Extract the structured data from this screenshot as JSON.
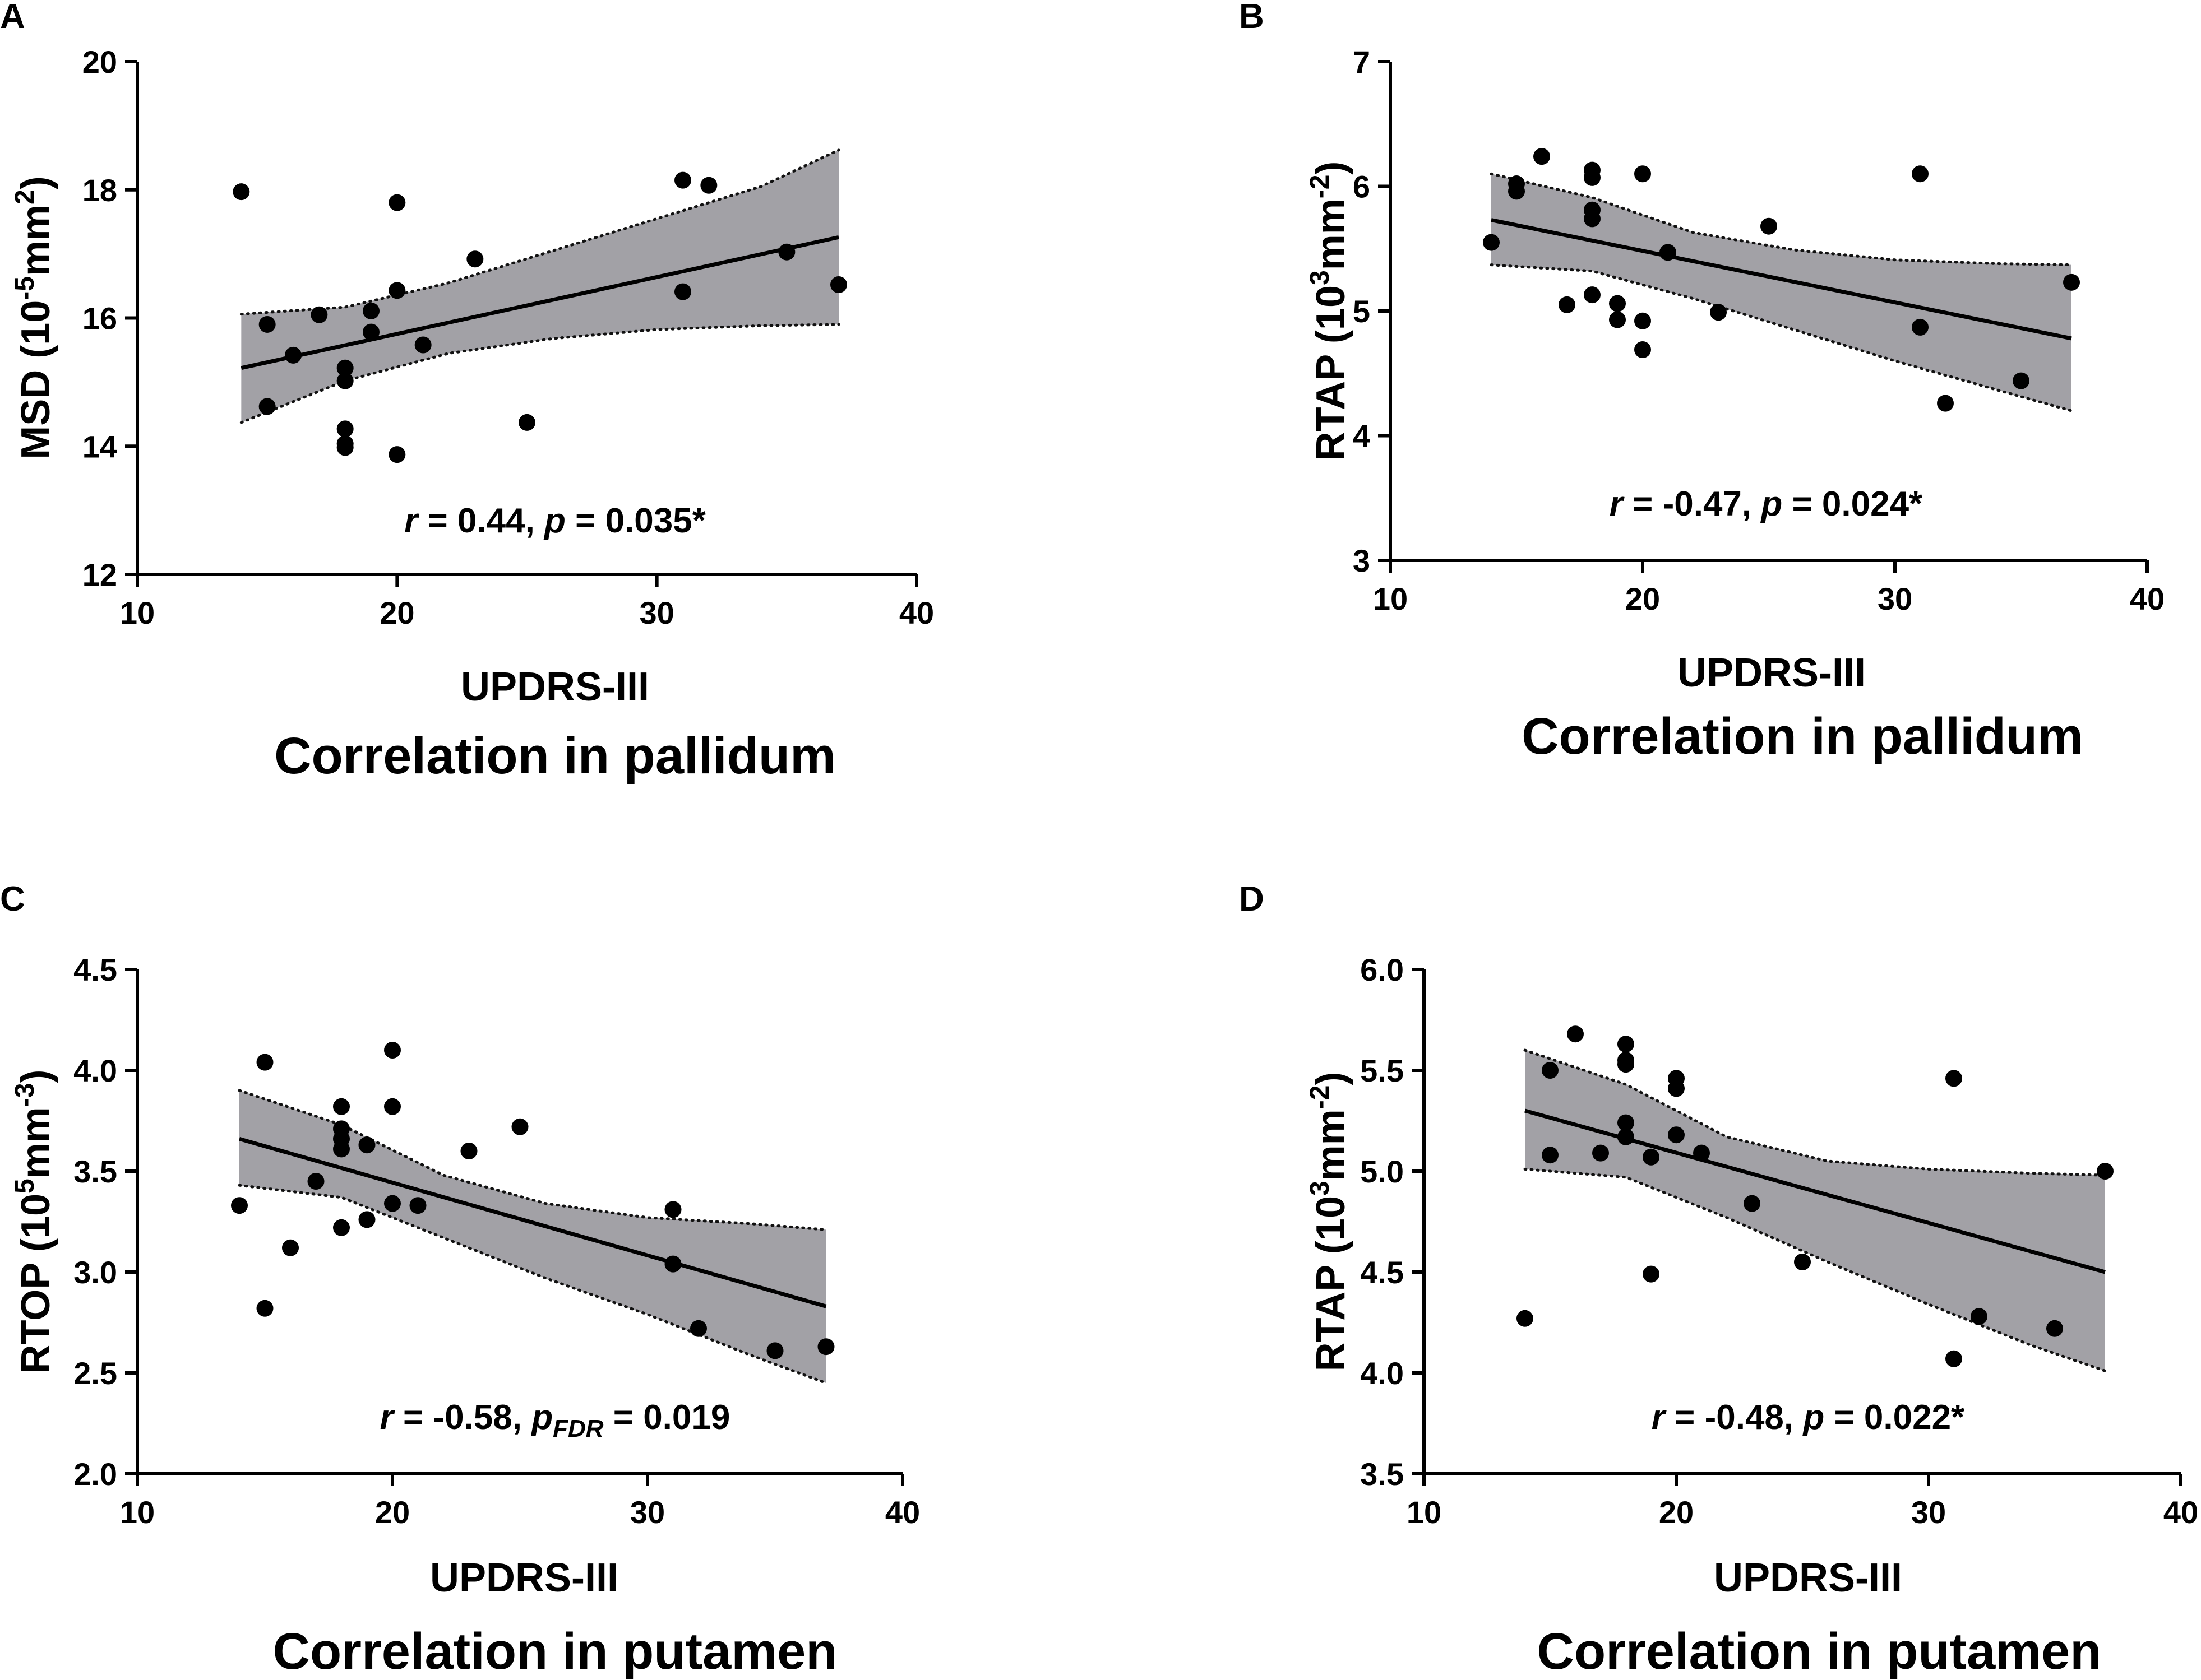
{
  "chart_data": [
    {
      "panel": "A",
      "type": "scatter",
      "title": "Correlation in pallidum",
      "xlabel": "UPDRS-III",
      "ylabel_parts": [
        "MSD (10",
        "-5",
        "mm",
        "2",
        ")"
      ],
      "xlim": [
        10,
        40
      ],
      "ylim": [
        12,
        20
      ],
      "xticks": [
        10,
        20,
        30,
        40
      ],
      "yticks": [
        12,
        14,
        16,
        18,
        20
      ],
      "ytick_labels": [
        "12",
        "14",
        "16",
        "18",
        "20"
      ],
      "points": [
        [
          14,
          17.97
        ],
        [
          15,
          15.9
        ],
        [
          15,
          14.62
        ],
        [
          16,
          15.42
        ],
        [
          17,
          16.05
        ],
        [
          18,
          15.22
        ],
        [
          18,
          15.02
        ],
        [
          18,
          14.27
        ],
        [
          18,
          14.04
        ],
        [
          18,
          13.98
        ],
        [
          19,
          16.11
        ],
        [
          19,
          15.78
        ],
        [
          20,
          17.8
        ],
        [
          20,
          16.43
        ],
        [
          20,
          13.87
        ],
        [
          21,
          15.58
        ],
        [
          23,
          16.92
        ],
        [
          25,
          14.37
        ],
        [
          31,
          18.15
        ],
        [
          31,
          16.41
        ],
        [
          32,
          18.07
        ],
        [
          35,
          17.03
        ],
        [
          37,
          16.52
        ]
      ],
      "fit": {
        "x": [
          14,
          37
        ],
        "y": [
          15.22,
          17.26
        ]
      },
      "ci_upper": [
        [
          14,
          16.06
        ],
        [
          18,
          16.17
        ],
        [
          22,
          16.55
        ],
        [
          26,
          17.05
        ],
        [
          30,
          17.55
        ],
        [
          34,
          18.05
        ],
        [
          37,
          18.62
        ]
      ],
      "ci_lower": [
        [
          14,
          14.37
        ],
        [
          18,
          15.02
        ],
        [
          22,
          15.45
        ],
        [
          26,
          15.68
        ],
        [
          30,
          15.82
        ],
        [
          34,
          15.88
        ],
        [
          37,
          15.9
        ]
      ],
      "annotation": {
        "r_sym": "r",
        "r_text": " = 0.44, ",
        "p_sym": "p",
        "p_sub": "",
        "p_text": " = 0.035*"
      }
    },
    {
      "panel": "B",
      "type": "scatter",
      "title": "Correlation in pallidum",
      "xlabel": "UPDRS-III",
      "ylabel_parts": [
        "RTAP (10",
        "3",
        "mm",
        "-2",
        ")"
      ],
      "xlim": [
        10,
        40
      ],
      "ylim": [
        3,
        7
      ],
      "xticks": [
        10,
        20,
        30,
        40
      ],
      "yticks": [
        3,
        4,
        5,
        6,
        7
      ],
      "ytick_labels": [
        "3",
        "4",
        "5",
        "6",
        "7"
      ],
      "points": [
        [
          14,
          5.55
        ],
        [
          15,
          6.02
        ],
        [
          15,
          5.96
        ],
        [
          16,
          6.24
        ],
        [
          17,
          5.05
        ],
        [
          18,
          6.13
        ],
        [
          18,
          6.07
        ],
        [
          18,
          5.81
        ],
        [
          18,
          5.74
        ],
        [
          18,
          5.13
        ],
        [
          19,
          5.06
        ],
        [
          19,
          4.93
        ],
        [
          20,
          6.1
        ],
        [
          20,
          4.92
        ],
        [
          20,
          4.69
        ],
        [
          21,
          5.47
        ],
        [
          23,
          4.99
        ],
        [
          25,
          5.68
        ],
        [
          31,
          6.1
        ],
        [
          31,
          4.87
        ],
        [
          32,
          4.26
        ],
        [
          35,
          4.44
        ],
        [
          37,
          5.23
        ]
      ],
      "fit": {
        "x": [
          14,
          37
        ],
        "y": [
          5.73,
          4.78
        ]
      },
      "ci_upper": [
        [
          14,
          6.1
        ],
        [
          18,
          5.91
        ],
        [
          22,
          5.63
        ],
        [
          26,
          5.49
        ],
        [
          30,
          5.41
        ],
        [
          34,
          5.38
        ],
        [
          37,
          5.37
        ]
      ],
      "ci_lower": [
        [
          14,
          5.37
        ],
        [
          18,
          5.32
        ],
        [
          22,
          5.1
        ],
        [
          26,
          4.85
        ],
        [
          30,
          4.6
        ],
        [
          34,
          4.37
        ],
        [
          37,
          4.2
        ]
      ],
      "annotation": {
        "r_sym": "r",
        "r_text": " = -0.47, ",
        "p_sym": "p",
        "p_sub": "",
        "p_text": " = 0.024*"
      }
    },
    {
      "panel": "C",
      "type": "scatter",
      "title": "Correlation in putamen",
      "xlabel": "UPDRS-III",
      "ylabel_parts": [
        "RTOP (10",
        "5",
        "mm",
        "-3",
        ")"
      ],
      "xlim": [
        10,
        40
      ],
      "ylim": [
        2.0,
        4.5
      ],
      "xticks": [
        10,
        20,
        30,
        40
      ],
      "yticks": [
        2.0,
        2.5,
        3.0,
        3.5,
        4.0,
        4.5
      ],
      "ytick_labels": [
        "2.0",
        "2.5",
        "3.0",
        "3.5",
        "4.0",
        "4.5"
      ],
      "points": [
        [
          14,
          3.33
        ],
        [
          15,
          4.04
        ],
        [
          15,
          2.82
        ],
        [
          16,
          3.12
        ],
        [
          17,
          3.45
        ],
        [
          18,
          3.82
        ],
        [
          18,
          3.71
        ],
        [
          18,
          3.66
        ],
        [
          18,
          3.61
        ],
        [
          18,
          3.22
        ],
        [
          19,
          3.63
        ],
        [
          19,
          3.26
        ],
        [
          20,
          4.1
        ],
        [
          20,
          3.82
        ],
        [
          20,
          3.34
        ],
        [
          21,
          3.33
        ],
        [
          23,
          3.6
        ],
        [
          25,
          3.72
        ],
        [
          31,
          3.31
        ],
        [
          31,
          3.04
        ],
        [
          32,
          2.72
        ],
        [
          35,
          2.61
        ],
        [
          37,
          2.63
        ]
      ],
      "fit": {
        "x": [
          14,
          37
        ],
        "y": [
          3.66,
          2.83
        ]
      },
      "ci_upper": [
        [
          14,
          3.9
        ],
        [
          18,
          3.73
        ],
        [
          22,
          3.48
        ],
        [
          26,
          3.34
        ],
        [
          30,
          3.27
        ],
        [
          34,
          3.24
        ],
        [
          37,
          3.21
        ]
      ],
      "ci_lower": [
        [
          14,
          3.43
        ],
        [
          18,
          3.37
        ],
        [
          22,
          3.17
        ],
        [
          26,
          2.97
        ],
        [
          30,
          2.79
        ],
        [
          34,
          2.59
        ],
        [
          37,
          2.45
        ]
      ],
      "annotation": {
        "r_sym": "r",
        "r_text": " = -0.58, ",
        "p_sym": "p",
        "p_sub": "FDR",
        "p_text": " = 0.019"
      }
    },
    {
      "panel": "D",
      "type": "scatter",
      "title": "Correlation in putamen",
      "xlabel": "UPDRS-III",
      "ylabel_parts": [
        "RTAP (10",
        "3",
        "mm",
        "-2",
        ")"
      ],
      "xlim": [
        10,
        40
      ],
      "ylim": [
        3.5,
        6.0
      ],
      "xticks": [
        10,
        20,
        30,
        40
      ],
      "yticks": [
        3.5,
        4.0,
        4.5,
        5.0,
        5.5,
        6.0
      ],
      "ytick_labels": [
        "3.5",
        "4.0",
        "4.5",
        "5.0",
        "5.5",
        "6.0"
      ],
      "points": [
        [
          14,
          4.27
        ],
        [
          15,
          5.5
        ],
        [
          15,
          5.08
        ],
        [
          16,
          5.68
        ],
        [
          17,
          5.09
        ],
        [
          18,
          5.63
        ],
        [
          18,
          5.55
        ],
        [
          18,
          5.53
        ],
        [
          18,
          5.24
        ],
        [
          18,
          5.17
        ],
        [
          19,
          5.07
        ],
        [
          19,
          4.49
        ],
        [
          20,
          5.46
        ],
        [
          20,
          5.41
        ],
        [
          20,
          5.18
        ],
        [
          21,
          5.09
        ],
        [
          23,
          4.84
        ],
        [
          25,
          4.55
        ],
        [
          31,
          5.46
        ],
        [
          31,
          4.07
        ],
        [
          32,
          4.28
        ],
        [
          35,
          4.22
        ],
        [
          37,
          5.0
        ]
      ],
      "fit": {
        "x": [
          14,
          37
        ],
        "y": [
          5.3,
          4.5
        ]
      },
      "ci_upper": [
        [
          14,
          5.6
        ],
        [
          18,
          5.43
        ],
        [
          22,
          5.17
        ],
        [
          26,
          5.05
        ],
        [
          30,
          5.01
        ],
        [
          34,
          4.99
        ],
        [
          37,
          4.98
        ]
      ],
      "ci_lower": [
        [
          14,
          5.01
        ],
        [
          18,
          4.97
        ],
        [
          22,
          4.77
        ],
        [
          26,
          4.55
        ],
        [
          30,
          4.34
        ],
        [
          34,
          4.14
        ],
        [
          37,
          4.01
        ]
      ],
      "annotation": {
        "r_sym": "r",
        "r_text": " = -0.48, ",
        "p_sym": "p",
        "p_sub": "",
        "p_text": " = 0.022*"
      }
    }
  ]
}
